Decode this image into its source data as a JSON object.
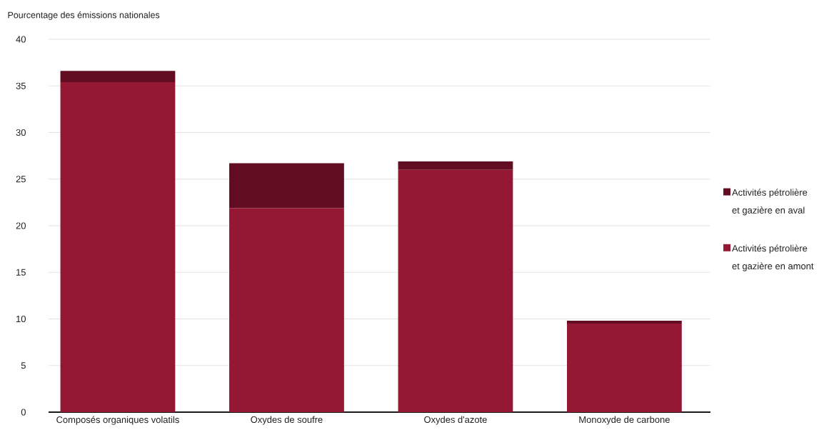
{
  "chart_data": {
    "type": "bar",
    "stacked": true,
    "ylabel": "Pourcentage des émissions nationales",
    "categories": [
      "Composés organiques volatils",
      "Oxydes de soufre",
      "Oxydes d'azote",
      "Monoxyde de carbone"
    ],
    "series": [
      {
        "name": "Activités pétrolière et gazière en amont",
        "color": "#941834",
        "values": [
          35.4,
          21.9,
          26.0,
          9.5
        ]
      },
      {
        "name": "Activités pétrolière et gazière en aval",
        "color": "#620d22",
        "values": [
          1.2,
          4.8,
          0.9,
          0.3
        ]
      }
    ],
    "ylim": [
      0,
      40
    ],
    "yticks": [
      0,
      5,
      10,
      15,
      20,
      25,
      30,
      35,
      40
    ],
    "grid": "y",
    "legend": "right"
  }
}
